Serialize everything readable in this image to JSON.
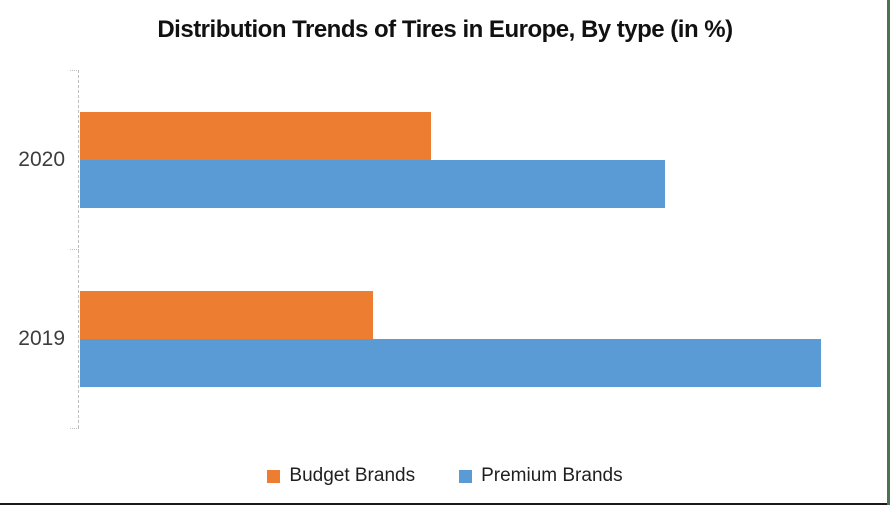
{
  "chart_data": {
    "type": "bar",
    "orientation": "horizontal",
    "title": "Distribution Trends of Tires in Europe, By type (in %)",
    "categories": [
      "2020",
      "2019"
    ],
    "series": [
      {
        "name": "Budget Brands",
        "color": "#ED7D31",
        "values": [
          36,
          30
        ]
      },
      {
        "name": "Premium Brands",
        "color": "#5B9BD5",
        "values": [
          60,
          76
        ]
      }
    ],
    "xlabel": "",
    "ylabel": "",
    "xlim": [
      0,
      80
    ],
    "grid": false,
    "legend_position": "bottom",
    "axis_line_color": "#BFBFBF",
    "border_right_color": "#4C7350",
    "border_bottom_color": "#1A1A1A",
    "background_color": "#FFFFFF"
  }
}
